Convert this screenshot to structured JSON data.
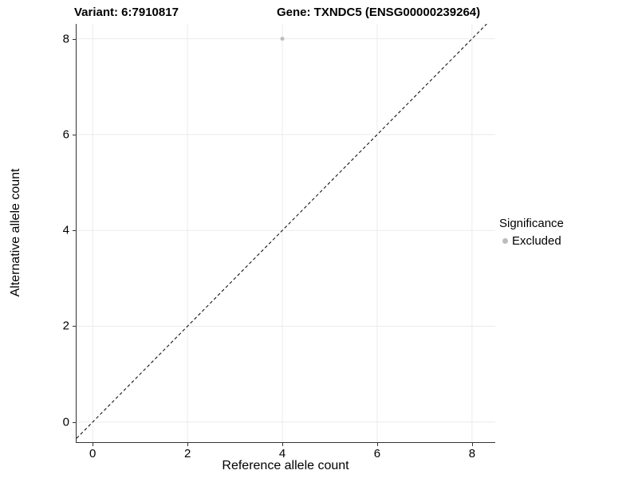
{
  "titles": {
    "variant": "Variant: 6:7910817",
    "gene": "Gene: TXNDC5 (ENSG00000239264)"
  },
  "chart_data": {
    "type": "scatter",
    "title": "",
    "xlabel": "Reference allele count",
    "ylabel": "Alternative allele count",
    "xlim": [
      -0.34,
      8.49
    ],
    "ylim": [
      -0.42,
      8.31
    ],
    "xticks": [
      0,
      2,
      4,
      6,
      8
    ],
    "yticks": [
      0,
      2,
      4,
      6,
      8
    ],
    "grid": true,
    "points": [
      {
        "x": 4,
        "y": 8,
        "series": "Excluded"
      }
    ],
    "identity_line": {
      "slope": 1,
      "intercept": 0,
      "style": "dashed",
      "color": "#000000"
    },
    "legend": {
      "title": "Significance",
      "position": "right",
      "items": [
        {
          "label": "Excluded",
          "color": "#bdbdbd"
        }
      ]
    },
    "colors": {
      "point": "#bdbdbd",
      "grid": "#ebebeb",
      "axis": "#333333",
      "background": "#ffffff"
    }
  }
}
